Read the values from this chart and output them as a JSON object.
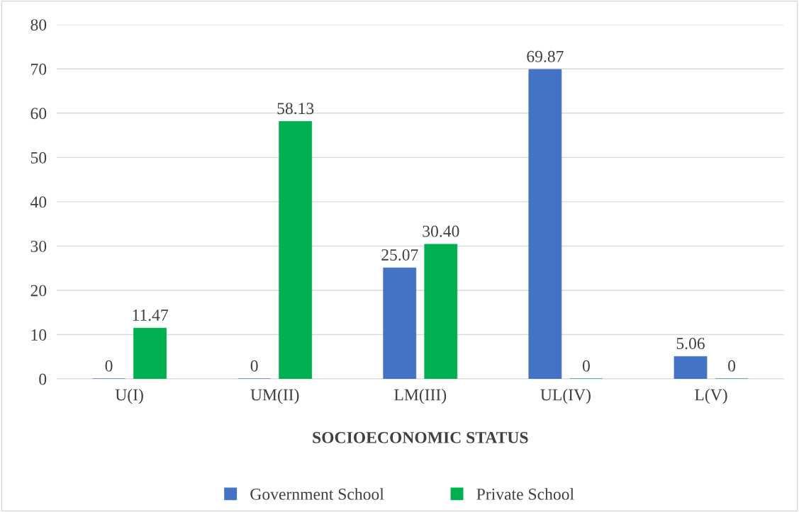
{
  "chart_data": {
    "type": "bar",
    "xlabel": "SOCIOECONOMIC STATUS",
    "categories": [
      "U(I)",
      "UM(II)",
      "LM(III)",
      "UL(IV)",
      "L(V)"
    ],
    "series": [
      {
        "name": "Government School",
        "color": "#4472c4",
        "values": [
          0,
          0,
          25.07,
          69.87,
          5.06
        ],
        "value_labels": [
          "0",
          "0",
          "25.07",
          "69.87",
          "5.06"
        ]
      },
      {
        "name": "Private School",
        "color": "#00b050",
        "values": [
          11.47,
          58.13,
          30.4,
          0,
          0
        ],
        "value_labels": [
          "11.47",
          "58.13",
          "30.40",
          "0",
          "0"
        ]
      }
    ],
    "ylim": [
      0,
      80
    ],
    "yticks": [
      0,
      10,
      20,
      30,
      40,
      50,
      60,
      70,
      80
    ],
    "grid": "y",
    "legend": "bottom"
  }
}
